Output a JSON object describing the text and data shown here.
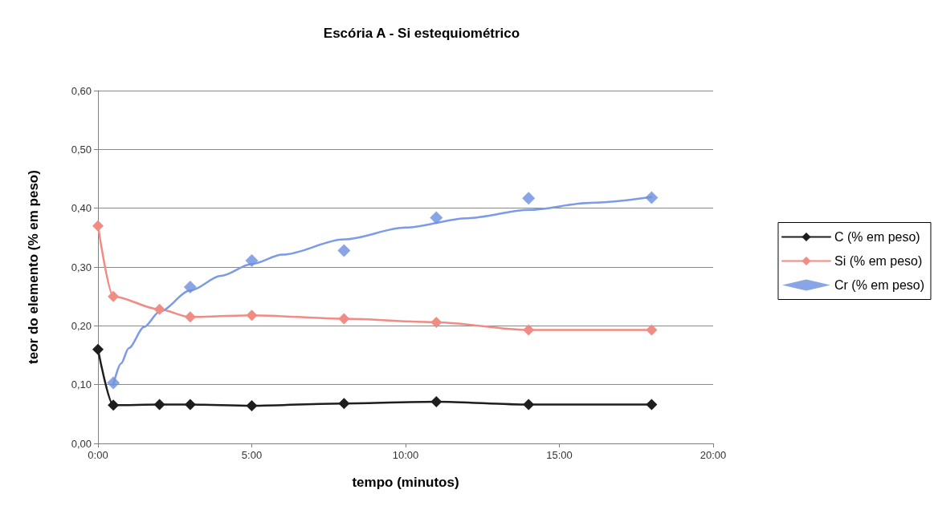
{
  "chart_data": {
    "type": "line",
    "title": "Escória A - Si estequiométrico",
    "xlabel": "tempo (minutos)",
    "ylabel": "teor do elemento (% em peso)",
    "x": [
      0,
      0.5,
      2,
      3,
      5,
      8,
      11,
      14,
      18
    ],
    "series": [
      {
        "name": "C (% em peso)",
        "color": "#1e1e1e",
        "values": [
          0.16,
          0.065,
          0.066,
          0.066,
          0.064,
          0.068,
          0.071,
          0.066,
          0.066
        ]
      },
      {
        "name": "Si (% em peso)",
        "color": "#f08c84",
        "values": [
          0.37,
          0.25,
          0.228,
          0.215,
          0.218,
          0.212,
          0.206,
          0.193,
          0.193
        ]
      },
      {
        "name": "Cr (% em peso)",
        "type": "scatter",
        "color": "#6b8fe0",
        "x": [
          0.5,
          3,
          5,
          8,
          11,
          14,
          18
        ],
        "values": [
          0.103,
          0.266,
          0.311,
          0.328,
          0.384,
          0.417,
          0.418
        ]
      },
      {
        "type": "line",
        "marker": "none",
        "color": "#7b9be6",
        "x": [
          0.5,
          0.75,
          1,
          1.5,
          2,
          3,
          4,
          5,
          6,
          8,
          10,
          12,
          14,
          16,
          18
        ],
        "values": [
          0.1,
          0.136,
          0.162,
          0.198,
          0.224,
          0.26,
          0.285,
          0.305,
          0.321,
          0.347,
          0.367,
          0.383,
          0.397,
          0.409,
          0.419
        ]
      }
    ],
    "xlim": [
      0,
      20
    ],
    "xticks": [
      {
        "value": 0,
        "label": "0:00"
      },
      {
        "value": 5,
        "label": "5:00"
      },
      {
        "value": 10,
        "label": "10:00"
      },
      {
        "value": 15,
        "label": "15:00"
      },
      {
        "value": 20,
        "label": "20:00"
      }
    ],
    "ylim": [
      0,
      0.6
    ],
    "yticks": [
      {
        "value": 0,
        "label": "0,00"
      },
      {
        "value": 0.1,
        "label": "0,10"
      },
      {
        "value": 0.2,
        "label": "0,20"
      },
      {
        "value": 0.3,
        "label": "0,30"
      },
      {
        "value": 0.4,
        "label": "0,40"
      },
      {
        "value": 0.5,
        "label": "0,50"
      },
      {
        "value": 0.6,
        "label": "0,60"
      }
    ],
    "grid": "y",
    "legend": "right",
    "marker": "diamond",
    "line_style": "solid"
  }
}
